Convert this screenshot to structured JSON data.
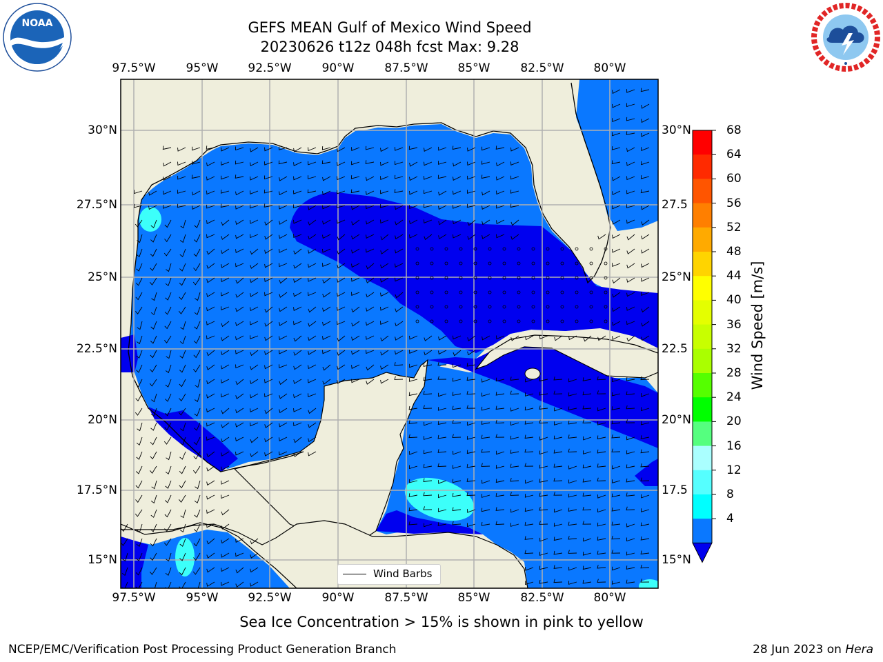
{
  "title": {
    "line1": "GEFS MEAN Gulf of Mexico Wind Speed",
    "line2": "20230626 t12z 048h fcst   Max: 9.28"
  },
  "logos": {
    "left": {
      "name": "noaa-logo",
      "text": "NOAA",
      "ring_text": "NATIONAL OCEANIC AND ATMOSPHERIC ADMINISTRATION · U.S. DEPARTMENT OF COMMERCE"
    },
    "right": {
      "name": "nws-logo",
      "ring_text": "NATIONAL WEATHER SERVICE"
    }
  },
  "map": {
    "extent": {
      "lon": [
        -98.5,
        -78.8
      ],
      "lat": [
        14.0,
        31.8
      ]
    },
    "lon_ticks": [
      "97.5°W",
      "95°W",
      "92.5°W",
      "90°W",
      "87.5°W",
      "85°W",
      "82.5°W",
      "80°W"
    ],
    "lat_ticks": [
      "30°N",
      "27.5°N",
      "25°N",
      "22.5°N",
      "20°N",
      "17.5°N",
      "15°N"
    ],
    "lat_ticks_right": [
      "30°N",
      "27.5",
      "25°N",
      "22.5",
      "20°N",
      "17.5",
      "15°N"
    ],
    "colors": {
      "land": "#efeedc",
      "ocean_4_8": "#0a78ff",
      "ocean_lt4": "#0000ef",
      "ocean_8_12": "#00ffff",
      "ocean_12_16": "#3cfffa"
    }
  },
  "legend": {
    "label": "Wind Barbs"
  },
  "colorbar": {
    "label": "Wind Speed [m/s]",
    "ticks": [
      "68",
      "64",
      "60",
      "56",
      "52",
      "48",
      "44",
      "40",
      "36",
      "32",
      "28",
      "24",
      "20",
      "16",
      "12",
      "8",
      "4"
    ],
    "colors": [
      "#ff0000",
      "#ff2a00",
      "#ff5500",
      "#ff7f00",
      "#ffaa00",
      "#ffd400",
      "#ffff00",
      "#e4ff00",
      "#c8ff00",
      "#aaff00",
      "#55ff00",
      "#00ff00",
      "#55ff7f",
      "#aaffff",
      "#55ffff",
      "#00ffff",
      "#0a78ff"
    ],
    "extend_color": "#0000ef"
  },
  "notes": {
    "sea_ice": "Sea Ice Concentration > 15% is shown in pink to yellow"
  },
  "footer": {
    "left": "NCEP/EMC/Verification Post Processing Product Generation Branch",
    "right_prefix": "28 Jun 2023 on ",
    "right_host": "Hera"
  }
}
